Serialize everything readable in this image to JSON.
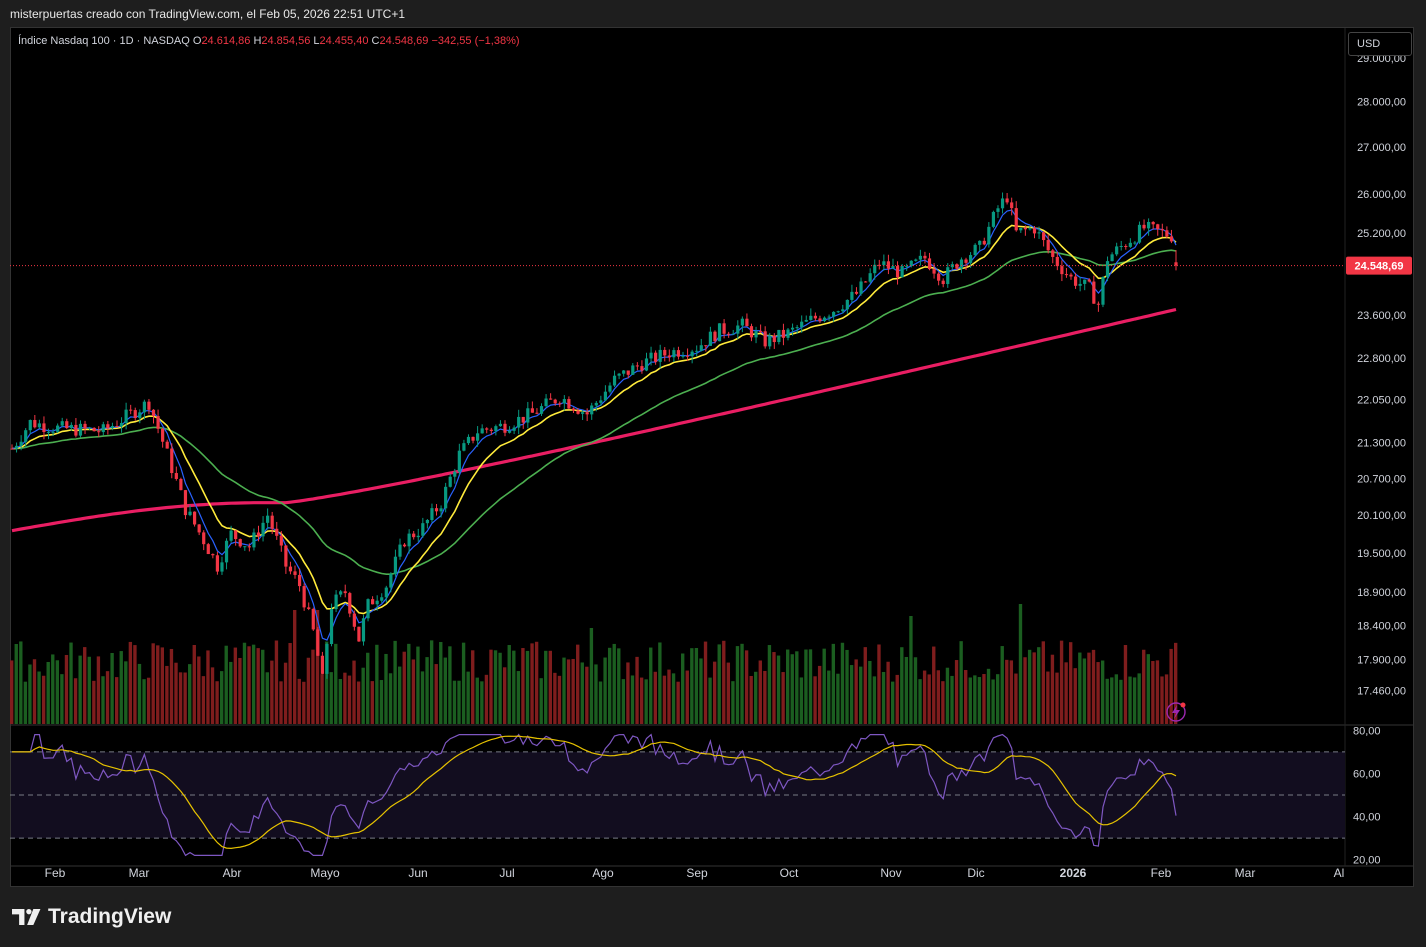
{
  "header": {
    "attribution": "misterpuertas creado con TradingView.com, el Feb 05, 2026 22:51 UTC+1"
  },
  "legend": {
    "symbol": "Índice Nasdaq 100 · 1D · NASDAQ",
    "open_label": "O",
    "open": "24.614,86",
    "high_label": "H",
    "high": "24.854,56",
    "low_label": "L",
    "low": "24.455,40",
    "close_label": "C",
    "close": "24.548,69",
    "change": "−342,55 (−1,38%)"
  },
  "currency": "USD",
  "price_tag": "24.548,69",
  "brand": "TradingView",
  "colors": {
    "up": "#089981",
    "down": "#f23645",
    "ema_blue": "#2962ff",
    "ema_yellow": "#ffeb3b",
    "ema_green": "#4caf50",
    "ema_pink": "#e91e63",
    "rsi_line": "#7e57c2",
    "rsi_ma": "#e6c200",
    "vol_up": "#1b5e20",
    "vol_down": "#7f1d1d"
  },
  "chart_data": {
    "type": "candlestick",
    "price_axis": {
      "ticks": [
        "29.000,00",
        "28.000,00",
        "27.000,00",
        "26.000,00",
        "25.200,00",
        "23.600,00",
        "22.800,00",
        "22.050,00",
        "21.300,00",
        "20.700,00",
        "20.100,00",
        "19.500,00",
        "18.900,00",
        "18.400,00",
        "17.900,00",
        "17.460,00"
      ],
      "scale": "log"
    },
    "time_axis": {
      "ticks": [
        "Feb",
        "Mar",
        "Abr",
        "Mayo",
        "Jun",
        "Jul",
        "Ago",
        "Sep",
        "Oct",
        "Nov",
        "Dic",
        "2026",
        "Feb",
        "Mar",
        "Al"
      ]
    },
    "price_series": {
      "name": "Índice Nasdaq 100",
      "points": [
        {
          "month": "Feb 2025",
          "close": 21750
        },
        {
          "month": "Mar 2025",
          "close": 19800
        },
        {
          "month": "Abr 2025",
          "close": 19250
        },
        {
          "month": "Abr 2025 low",
          "close": 17600
        },
        {
          "month": "Mayo 2025",
          "close": 19500
        },
        {
          "month": "Jun 2025",
          "close": 21350
        },
        {
          "month": "Jul 2025",
          "close": 22400
        },
        {
          "month": "Ago 2025",
          "close": 23400
        },
        {
          "month": "Sep 2025",
          "close": 23600
        },
        {
          "month": "Oct 2025",
          "close": 24800
        },
        {
          "month": "Nov 2025",
          "close": 25700
        },
        {
          "month": "Dic 2025",
          "close": 24700
        },
        {
          "month": "Ene 2026",
          "close": 25400
        },
        {
          "month": "Feb 2026",
          "close": 24548.69
        }
      ]
    },
    "moving_averages": [
      {
        "color": "blue"
      },
      {
        "color": "yellow"
      },
      {
        "color": "green"
      },
      {
        "color": "pink",
        "end_value": 23700
      }
    ],
    "rsi": {
      "ticks": [
        "80,00",
        "60,00",
        "40,00",
        "20,00"
      ],
      "upper_band": 70,
      "middle_band": 50,
      "lower_band": 30,
      "range": [
        20,
        80
      ]
    }
  }
}
